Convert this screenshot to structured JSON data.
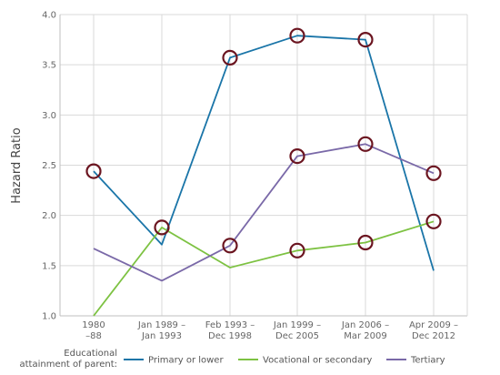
{
  "chart_data": {
    "type": "line",
    "ylabel": "Hazard Ratio",
    "ylim": [
      1.0,
      4.0
    ],
    "yticks": [
      "1.0",
      "1.5",
      "2.0",
      "2.5",
      "3.0",
      "3.5",
      "4.0"
    ],
    "categories": [
      [
        "1980",
        "–88"
      ],
      [
        "Jan 1989 –",
        "Jan 1993"
      ],
      [
        "Feb 1993 –",
        "Dec 1998"
      ],
      [
        "Jan 1999 –",
        "Dec 2005"
      ],
      [
        "Jan 2006 –",
        "Mar 2009"
      ],
      [
        "Apr 2009 –",
        "Dec 2012"
      ]
    ],
    "legend_title": [
      "Educational",
      "attainment of parent:"
    ],
    "grid": true,
    "legend_position": "bottom",
    "series": [
      {
        "name": "Primary or lower",
        "color": "#1a75a8",
        "values": [
          2.44,
          1.71,
          3.57,
          3.79,
          3.75,
          1.45
        ],
        "marked": [
          true,
          false,
          true,
          true,
          true,
          false
        ]
      },
      {
        "name": "Vocational or secondary",
        "color": "#7dc242",
        "values": [
          1.0,
          1.88,
          1.48,
          1.65,
          1.73,
          1.94
        ],
        "marked": [
          false,
          true,
          false,
          true,
          true,
          true
        ]
      },
      {
        "name": "Tertiary",
        "color": "#7a69a8",
        "values": [
          1.67,
          1.35,
          1.7,
          2.59,
          2.71,
          2.42
        ],
        "marked": [
          false,
          false,
          true,
          true,
          true,
          true
        ]
      }
    ],
    "marker_color": "#6b1520"
  }
}
